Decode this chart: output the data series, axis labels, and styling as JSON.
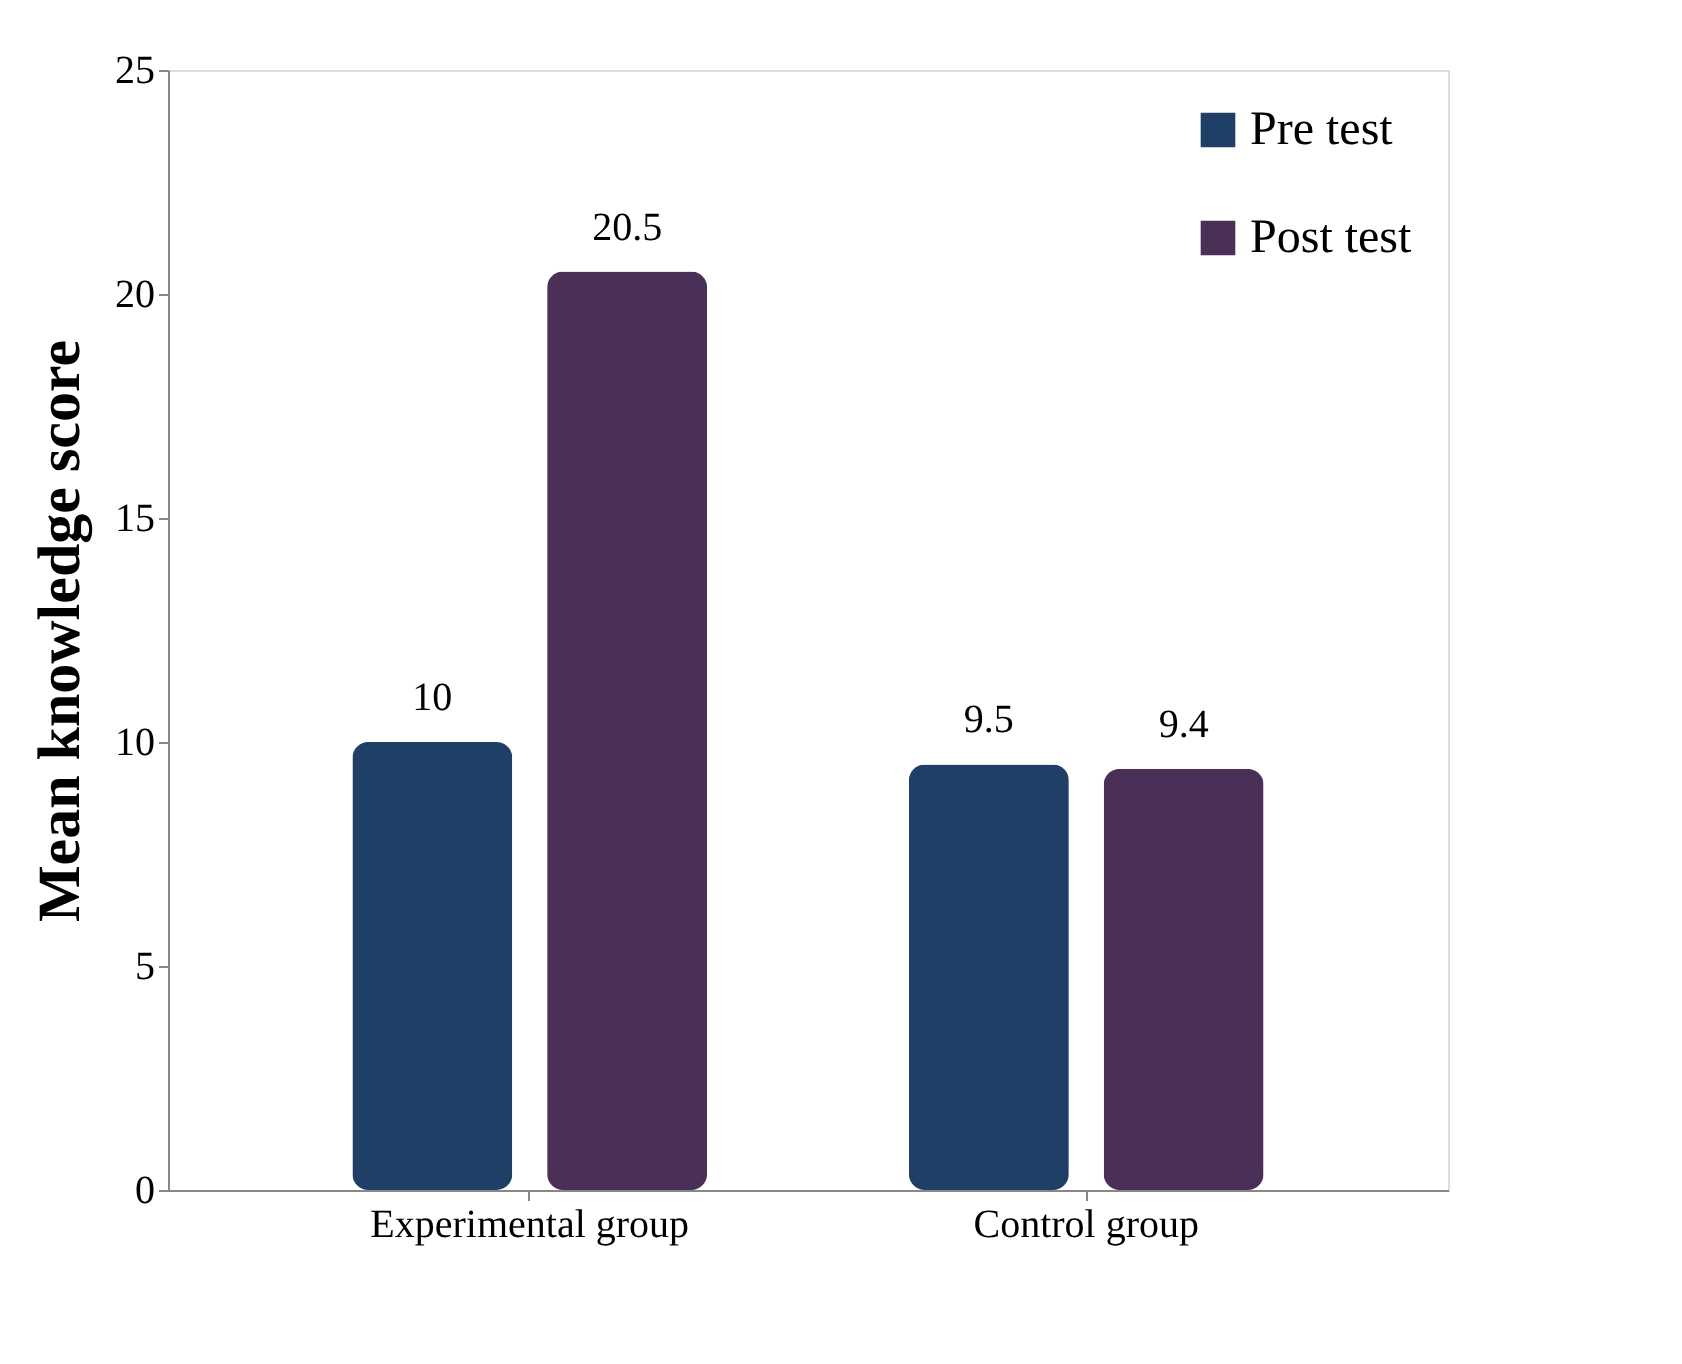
{
  "chart_data": {
    "type": "bar",
    "ylabel": "Mean knowledge  score",
    "categories": [
      "Experimental group",
      "Control group"
    ],
    "series": [
      {
        "name": "Pre test",
        "color": "#1f3f66",
        "values": [
          10,
          9.5
        ]
      },
      {
        "name": "Post test",
        "color": "#4a2f57",
        "values": [
          20.5,
          9.4
        ]
      }
    ],
    "ylim": [
      0,
      25
    ],
    "yticks": [
      0,
      5,
      10,
      15,
      20,
      25
    ],
    "grid": false,
    "legend": "top right",
    "data_labels": true
  }
}
